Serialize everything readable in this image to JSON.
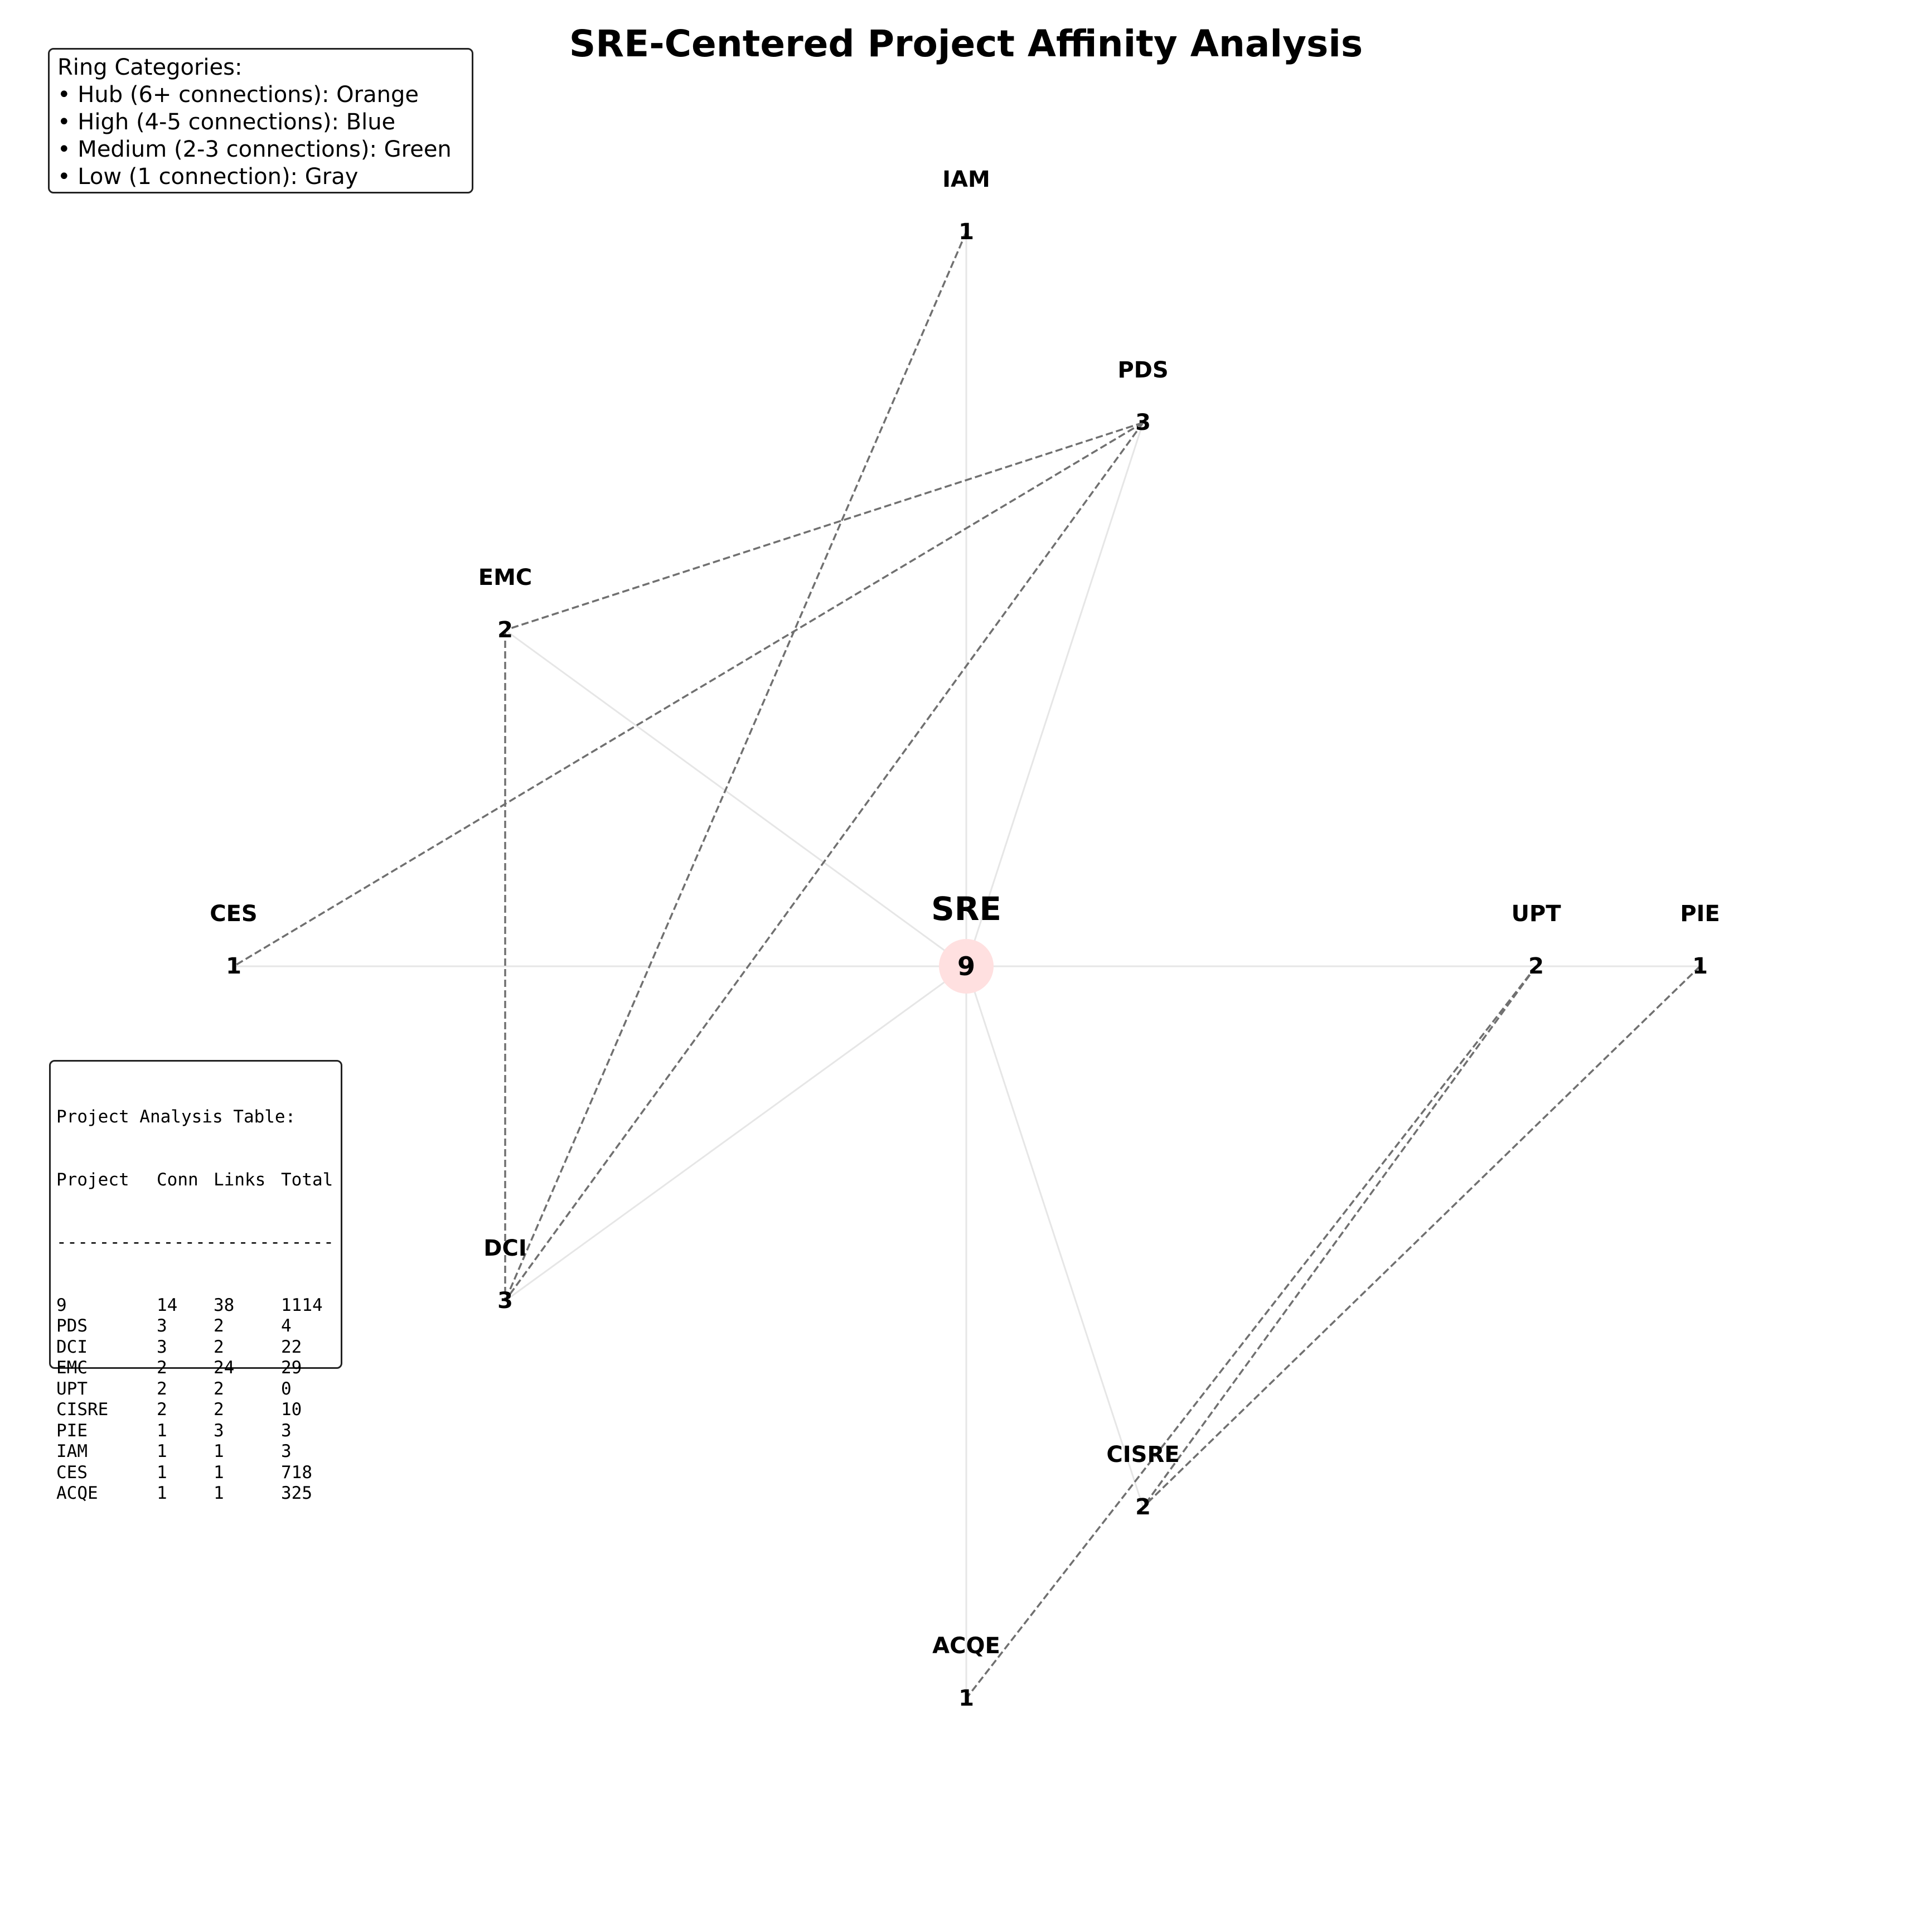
{
  "title": "SRE-Centered Project Affinity Analysis",
  "legend": {
    "heading": "Ring Categories:",
    "items": [
      "• Hub (6+ connections): Orange",
      "• High (4-5 connections): Blue",
      "• Medium (2-3 connections): Green",
      "• Low (1 connection): Gray"
    ]
  },
  "center_node": {
    "label": "SRE",
    "value": "9",
    "halo_color": "#ffe0e0"
  },
  "nodes": [
    {
      "id": "IAM",
      "label": "IAM",
      "value": "1"
    },
    {
      "id": "PDS",
      "label": "PDS",
      "value": "3"
    },
    {
      "id": "EMC",
      "label": "EMC",
      "value": "2"
    },
    {
      "id": "CES",
      "label": "CES",
      "value": "1"
    },
    {
      "id": "DCI",
      "label": "DCI",
      "value": "3"
    },
    {
      "id": "UPT",
      "label": "UPT",
      "value": "2"
    },
    {
      "id": "PIE",
      "label": "PIE",
      "value": "1"
    },
    {
      "id": "CISRE",
      "label": "CISRE",
      "value": "2"
    },
    {
      "id": "ACQE",
      "label": "ACQE",
      "value": "1"
    }
  ],
  "spokes": [
    "IAM",
    "PDS",
    "EMC",
    "CES",
    "DCI",
    "UPT",
    "PIE",
    "CISRE",
    "ACQE"
  ],
  "links": [
    [
      "IAM",
      "DCI"
    ],
    [
      "PDS",
      "EMC"
    ],
    [
      "PDS",
      "CES"
    ],
    [
      "PDS",
      "DCI"
    ],
    [
      "EMC",
      "DCI"
    ],
    [
      "UPT",
      "CISRE"
    ],
    [
      "UPT",
      "ACQE"
    ],
    [
      "PIE",
      "CISRE"
    ]
  ],
  "colors": {
    "spoke": "#e6e6e6",
    "link": "#707070",
    "text": "#000000"
  },
  "table": {
    "heading": "Project Analysis Table:",
    "columns": [
      "Project",
      "Conn",
      "Links",
      "Total"
    ],
    "separator": "--------------------------",
    "rows": [
      [
        "9",
        "14",
        "38",
        "1114"
      ],
      [
        "PDS",
        "3",
        "2",
        "4"
      ],
      [
        "DCI",
        "3",
        "2",
        "22"
      ],
      [
        "EMC",
        "2",
        "24",
        "29"
      ],
      [
        "UPT",
        "2",
        "2",
        "0"
      ],
      [
        "CISRE",
        "2",
        "2",
        "10"
      ],
      [
        "PIE",
        "1",
        "3",
        "3"
      ],
      [
        "IAM",
        "1",
        "1",
        "3"
      ],
      [
        "CES",
        "1",
        "1",
        "718"
      ],
      [
        "ACQE",
        "1",
        "1",
        "325"
      ]
    ]
  }
}
